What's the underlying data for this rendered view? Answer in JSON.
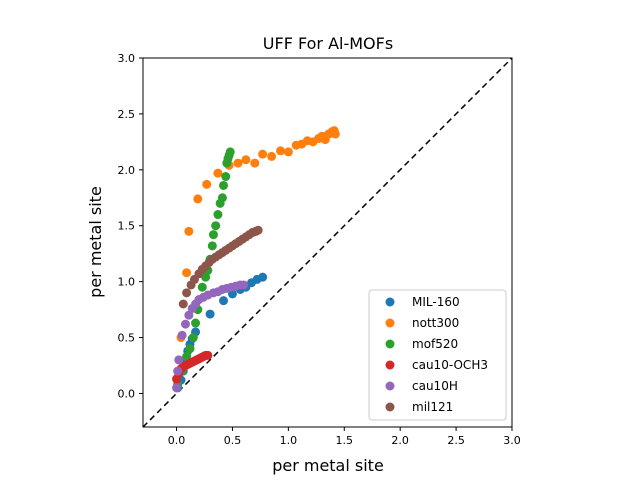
{
  "chart_data": {
    "type": "scatter",
    "title": "UFF For Al-MOFs",
    "xlabel": "per metal site",
    "ylabel": "per metal site",
    "xlim": [
      -0.3,
      3.0
    ],
    "ylim": [
      -0.3,
      3.0
    ],
    "xticks": [
      "0.0",
      "0.5",
      "1.0",
      "1.5",
      "2.0",
      "2.5",
      "3.0"
    ],
    "yticks": [
      "0.0",
      "0.5",
      "1.0",
      "1.5",
      "2.0",
      "2.5",
      "3.0"
    ],
    "grid": false,
    "legend_position": "lower-right",
    "reference_line": {
      "style": "dashed",
      "color": "#000000",
      "from": [
        -0.3,
        -0.3
      ],
      "to": [
        3.0,
        3.0
      ]
    },
    "series": [
      {
        "name": "MIL-160",
        "color": "#1f77b4",
        "points": [
          [
            0.01,
            0.05
          ],
          [
            0.04,
            0.12
          ],
          [
            0.06,
            0.2
          ],
          [
            0.08,
            0.3
          ],
          [
            0.1,
            0.38
          ],
          [
            0.12,
            0.44
          ],
          [
            0.14,
            0.49
          ],
          [
            0.17,
            0.55
          ],
          [
            0.3,
            0.71
          ],
          [
            0.42,
            0.83
          ],
          [
            0.5,
            0.89
          ],
          [
            0.57,
            0.93
          ],
          [
            0.62,
            0.95
          ],
          [
            0.67,
            0.99
          ],
          [
            0.72,
            1.02
          ],
          [
            0.77,
            1.04
          ]
        ]
      },
      {
        "name": "nott300",
        "color": "#ff7f0e",
        "points": [
          [
            0.04,
            0.5
          ],
          [
            0.09,
            1.08
          ],
          [
            0.11,
            1.45
          ],
          [
            0.19,
            1.74
          ],
          [
            0.27,
            1.87
          ],
          [
            0.37,
            1.97
          ],
          [
            0.47,
            2.04
          ],
          [
            0.55,
            2.06
          ],
          [
            0.62,
            2.09
          ],
          [
            0.7,
            2.06
          ],
          [
            0.77,
            2.14
          ],
          [
            0.85,
            2.12
          ],
          [
            0.93,
            2.17
          ],
          [
            1.0,
            2.16
          ],
          [
            1.07,
            2.22
          ],
          [
            1.12,
            2.23
          ],
          [
            1.17,
            2.26
          ],
          [
            1.22,
            2.25
          ],
          [
            1.27,
            2.28
          ],
          [
            1.3,
            2.3
          ],
          [
            1.33,
            2.27
          ],
          [
            1.36,
            2.32
          ],
          [
            1.39,
            2.34
          ],
          [
            1.41,
            2.35
          ],
          [
            1.42,
            2.32
          ]
        ]
      },
      {
        "name": "mof520",
        "color": "#2ca02c",
        "points": [
          [
            0.01,
            0.08
          ],
          [
            0.05,
            0.2
          ],
          [
            0.09,
            0.33
          ],
          [
            0.12,
            0.4
          ],
          [
            0.15,
            0.5
          ],
          [
            0.17,
            0.63
          ],
          [
            0.19,
            0.75
          ],
          [
            0.23,
            0.95
          ],
          [
            0.26,
            1.04
          ],
          [
            0.28,
            1.1
          ],
          [
            0.3,
            1.2
          ],
          [
            0.32,
            1.32
          ],
          [
            0.33,
            1.42
          ],
          [
            0.35,
            1.5
          ],
          [
            0.37,
            1.6
          ],
          [
            0.39,
            1.7
          ],
          [
            0.41,
            1.75
          ],
          [
            0.42,
            1.86
          ],
          [
            0.44,
            1.94
          ],
          [
            0.45,
            2.06
          ],
          [
            0.46,
            2.1
          ],
          [
            0.47,
            2.13
          ],
          [
            0.48,
            2.16
          ]
        ]
      },
      {
        "name": "cau10-OCH3",
        "color": "#d62728",
        "points": [
          [
            0.0,
            0.13
          ],
          [
            0.02,
            0.18
          ],
          [
            0.04,
            0.22
          ],
          [
            0.06,
            0.24
          ],
          [
            0.08,
            0.25
          ],
          [
            0.1,
            0.26
          ],
          [
            0.12,
            0.27
          ],
          [
            0.14,
            0.28
          ],
          [
            0.16,
            0.29
          ],
          [
            0.18,
            0.3
          ],
          [
            0.2,
            0.31
          ],
          [
            0.22,
            0.32
          ],
          [
            0.24,
            0.33
          ],
          [
            0.26,
            0.34
          ],
          [
            0.28,
            0.34
          ]
        ]
      },
      {
        "name": "cau10H",
        "color": "#9467bd",
        "points": [
          [
            0.0,
            0.05
          ],
          [
            0.01,
            0.2
          ],
          [
            0.02,
            0.3
          ],
          [
            0.05,
            0.52
          ],
          [
            0.08,
            0.62
          ],
          [
            0.11,
            0.7
          ],
          [
            0.14,
            0.76
          ],
          [
            0.17,
            0.8
          ],
          [
            0.2,
            0.84
          ],
          [
            0.24,
            0.86
          ],
          [
            0.28,
            0.88
          ],
          [
            0.33,
            0.9
          ],
          [
            0.37,
            0.91
          ],
          [
            0.41,
            0.93
          ],
          [
            0.45,
            0.94
          ],
          [
            0.49,
            0.95
          ],
          [
            0.53,
            0.96
          ],
          [
            0.57,
            0.97
          ],
          [
            0.6,
            0.97
          ]
        ]
      },
      {
        "name": "mil121",
        "color": "#8c564b",
        "points": [
          [
            0.06,
            0.8
          ],
          [
            0.09,
            0.9
          ],
          [
            0.13,
            0.97
          ],
          [
            0.16,
            1.02
          ],
          [
            0.2,
            1.07
          ],
          [
            0.23,
            1.11
          ],
          [
            0.26,
            1.14
          ],
          [
            0.29,
            1.17
          ],
          [
            0.32,
            1.2
          ],
          [
            0.35,
            1.22
          ],
          [
            0.38,
            1.24
          ],
          [
            0.41,
            1.26
          ],
          [
            0.44,
            1.28
          ],
          [
            0.47,
            1.3
          ],
          [
            0.5,
            1.32
          ],
          [
            0.53,
            1.34
          ],
          [
            0.56,
            1.36
          ],
          [
            0.59,
            1.38
          ],
          [
            0.62,
            1.4
          ],
          [
            0.65,
            1.42
          ],
          [
            0.68,
            1.44
          ],
          [
            0.71,
            1.45
          ],
          [
            0.73,
            1.46
          ]
        ]
      }
    ]
  }
}
